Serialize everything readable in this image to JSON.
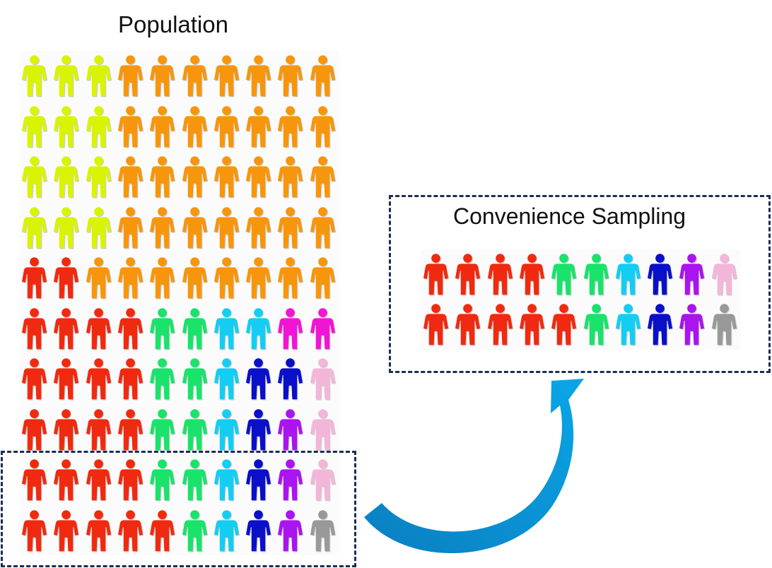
{
  "population": {
    "title": "Population",
    "rows": [
      [
        "#d9f400",
        "#d9f400",
        "#d9f400",
        "#f7960c",
        "#f7960c",
        "#f7960c",
        "#f7960c",
        "#f7960c",
        "#f7960c",
        "#f7960c"
      ],
      [
        "#d9f400",
        "#d9f400",
        "#d9f400",
        "#f7960c",
        "#f7960c",
        "#f7960c",
        "#f7960c",
        "#f7960c",
        "#f7960c",
        "#f7960c"
      ],
      [
        "#d9f400",
        "#d9f400",
        "#d9f400",
        "#f7960c",
        "#f7960c",
        "#f7960c",
        "#f7960c",
        "#f7960c",
        "#f7960c",
        "#f7960c"
      ],
      [
        "#d9f400",
        "#d9f400",
        "#d9f400",
        "#f7960c",
        "#f7960c",
        "#f7960c",
        "#f7960c",
        "#f7960c",
        "#f7960c",
        "#f7960c"
      ],
      [
        "#f02a10",
        "#f02a10",
        "#f7960c",
        "#f7960c",
        "#f7960c",
        "#f7960c",
        "#f7960c",
        "#f7960c",
        "#f7960c",
        "#f7960c"
      ],
      [
        "#f02a10",
        "#f02a10",
        "#f02a10",
        "#f02a10",
        "#19e36a",
        "#19e36a",
        "#14cdf2",
        "#14cdf2",
        "#f214d4",
        "#f214d4"
      ],
      [
        "#f02a10",
        "#f02a10",
        "#f02a10",
        "#f02a10",
        "#19e36a",
        "#19e36a",
        "#14cdf2",
        "#0a0fc8",
        "#0a0fc8",
        "#f3b6d8"
      ],
      [
        "#f02a10",
        "#f02a10",
        "#f02a10",
        "#f02a10",
        "#19e36a",
        "#19e36a",
        "#14cdf2",
        "#0a0fc8",
        "#a914ef",
        "#f3b6d8"
      ],
      [
        "#f02a10",
        "#f02a10",
        "#f02a10",
        "#f02a10",
        "#19e36a",
        "#19e36a",
        "#14cdf2",
        "#0a0fc8",
        "#a914ef",
        "#f3b6d8"
      ],
      [
        "#f02a10",
        "#f02a10",
        "#f02a10",
        "#f02a10",
        "#f02a10",
        "#19e36a",
        "#14cdf2",
        "#0a0fc8",
        "#a914ef",
        "#999999"
      ]
    ]
  },
  "sample": {
    "title": "Convenience Sampling",
    "rows": [
      [
        "#f02a10",
        "#f02a10",
        "#f02a10",
        "#f02a10",
        "#19e36a",
        "#19e36a",
        "#14cdf2",
        "#0a0fc8",
        "#a914ef",
        "#f3b6d8"
      ],
      [
        "#f02a10",
        "#f02a10",
        "#f02a10",
        "#f02a10",
        "#f02a10",
        "#19e36a",
        "#14cdf2",
        "#0a0fc8",
        "#a914ef",
        "#999999"
      ]
    ]
  },
  "arrow": {
    "color": "#0aa6e8"
  }
}
